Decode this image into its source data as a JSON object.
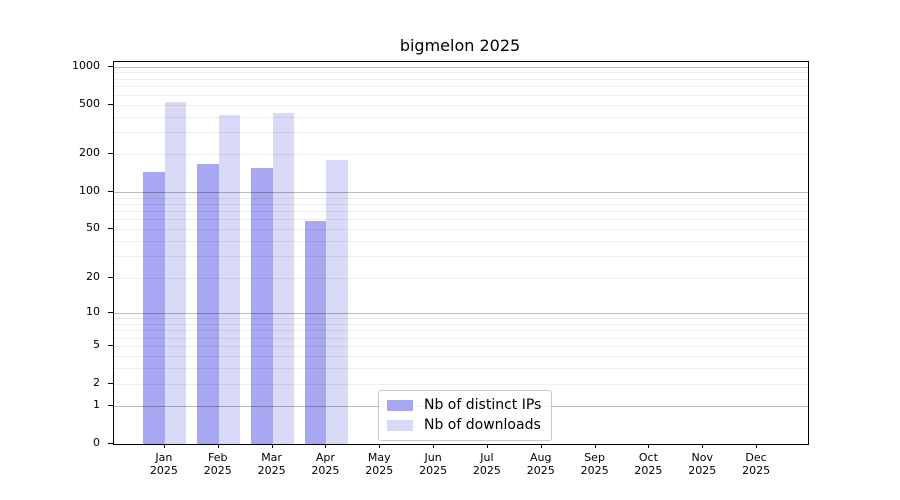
{
  "title": "bigmelon 2025",
  "chart_data": {
    "type": "bar",
    "title": "bigmelon 2025",
    "categories": [
      "Jan 2025",
      "Feb 2025",
      "Mar 2025",
      "Apr 2025",
      "May 2025",
      "Jun 2025",
      "Jul 2025",
      "Aug 2025",
      "Sep 2025",
      "Oct 2025",
      "Nov 2025",
      "Dec 2025"
    ],
    "series": [
      {
        "name": "Nb of distinct IPs",
        "color": "#a7a7f2",
        "values": [
          145,
          167,
          157,
          58,
          null,
          null,
          null,
          null,
          null,
          null,
          null,
          null
        ]
      },
      {
        "name": "Nb of downloads",
        "color": "#d9d9f8",
        "values": [
          520,
          410,
          430,
          180,
          null,
          null,
          null,
          null,
          null,
          null,
          null,
          null
        ]
      }
    ],
    "xlabel": "",
    "ylabel": "",
    "yscale": "log1p",
    "yticks": [
      0,
      1,
      2,
      5,
      10,
      20,
      50,
      100,
      200,
      500,
      1000
    ],
    "ylim": [
      0,
      1090
    ],
    "grid": true,
    "legend_position": "lower center"
  }
}
